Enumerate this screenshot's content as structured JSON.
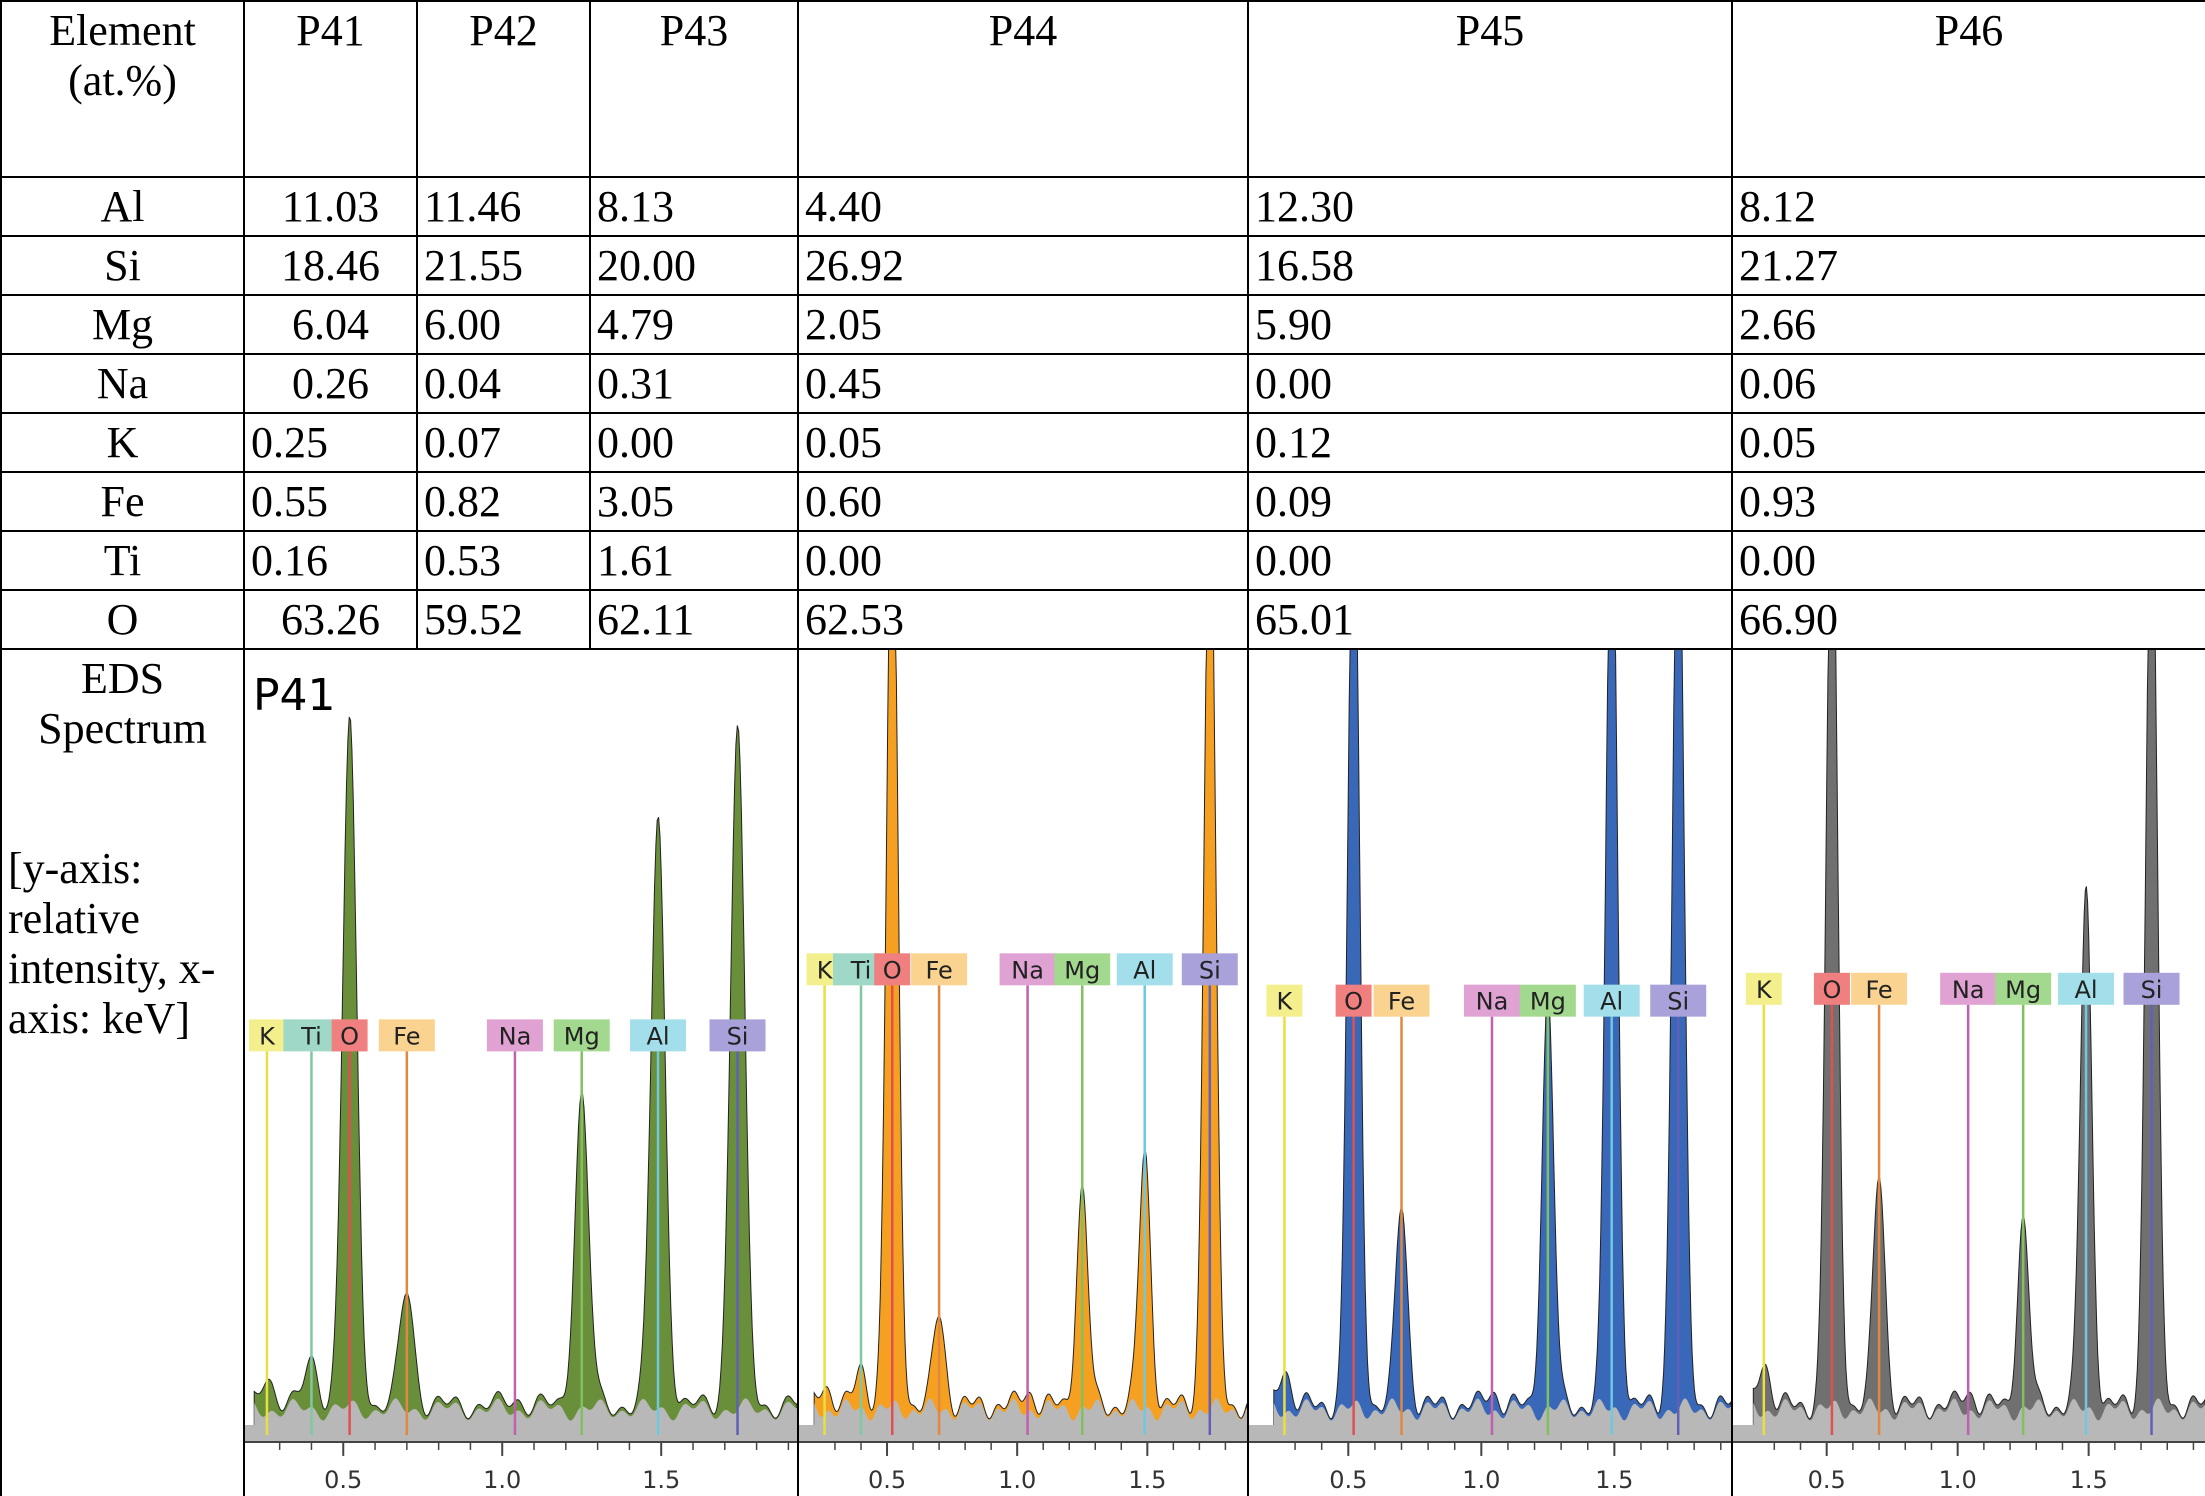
{
  "header": {
    "element": "Element (at.%)",
    "columns": [
      "P41",
      "P42",
      "P43",
      "P44",
      "P45",
      "P46"
    ]
  },
  "rows": [
    {
      "element": "Al",
      "values": [
        "11.03",
        "11.46",
        "8.13",
        "4.40",
        "12.30",
        "8.12"
      ]
    },
    {
      "element": "Si",
      "values": [
        "18.46",
        "21.55",
        "20.00",
        "26.92",
        "16.58",
        "21.27"
      ]
    },
    {
      "element": "Mg",
      "values": [
        "6.04",
        "6.00",
        "4.79",
        "2.05",
        "5.90",
        "2.66"
      ]
    },
    {
      "element": "Na",
      "values": [
        "0.26",
        "0.04",
        "0.31",
        "0.45",
        "0.00",
        "0.06"
      ]
    },
    {
      "element": "K",
      "values": [
        "0.25",
        "0.07",
        "0.00",
        "0.05",
        "0.12",
        "0.05"
      ]
    },
    {
      "element": "Fe",
      "values": [
        "0.55",
        "0.82",
        "3.05",
        "0.60",
        "0.09",
        "0.93"
      ]
    },
    {
      "element": "Ti",
      "values": [
        "0.16",
        "0.53",
        "1.61",
        "0.00",
        "0.00",
        "0.00"
      ]
    },
    {
      "element": "O",
      "values": [
        "63.26",
        "59.52",
        "62.11",
        "62.53",
        "65.01",
        "66.90"
      ]
    }
  ],
  "spectrum_row": {
    "label": "EDS Spectrum",
    "note": "[y-axis: relative intensity, x-axis: keV]"
  },
  "spectra": [
    {
      "title": "P41",
      "peaks": [
        "K",
        "Ti",
        "O",
        "Fe",
        "Na",
        "Mg",
        "Al",
        "Si"
      ],
      "ticks": [
        "0.5",
        "1.0",
        "1.5"
      ]
    },
    {
      "peaks": [
        "K",
        "Ti",
        "O",
        "Fe",
        "Na",
        "Mg",
        "Al",
        "Si"
      ],
      "ticks": [
        "0.5",
        "1.0",
        "1.5"
      ]
    },
    {
      "peaks": [
        "K",
        "O",
        "Fe",
        "Na",
        "Mg",
        "Al",
        "Si"
      ],
      "ticks": [
        "0.5",
        "1.0",
        "1.5"
      ]
    },
    {
      "peaks": [
        "K",
        "O",
        "Fe",
        "Na",
        "Mg",
        "Al",
        "Si"
      ],
      "ticks": [
        "0.5",
        "1.0",
        "1.5"
      ]
    }
  ]
}
